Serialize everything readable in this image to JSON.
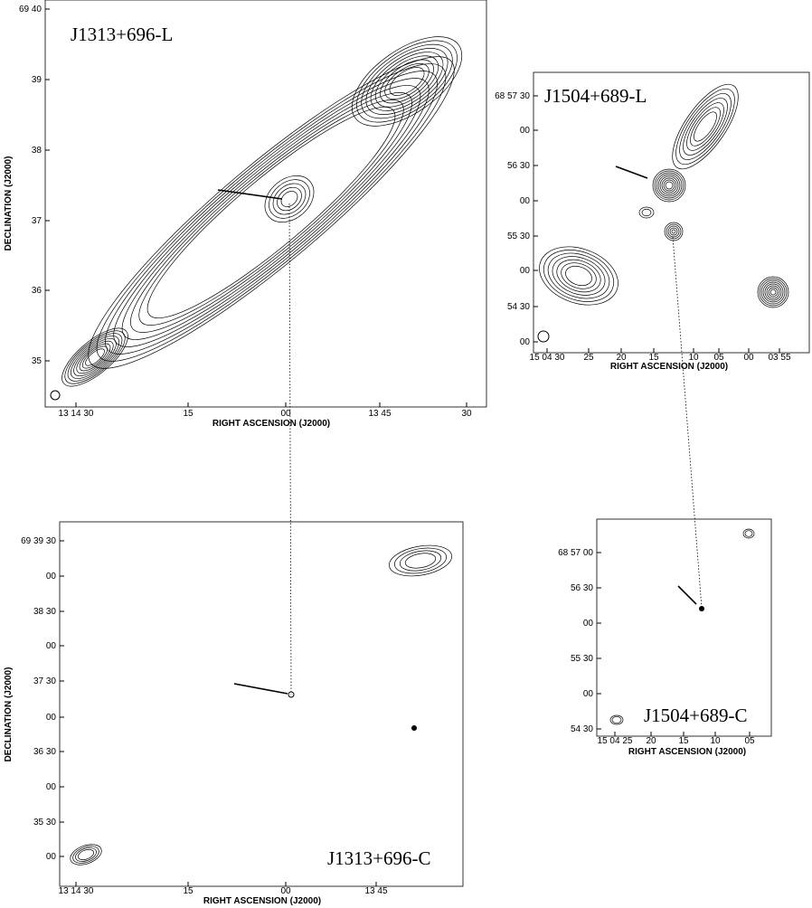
{
  "panels": [
    {
      "title": "J1313+696-L",
      "xlabel": "RIGHT ASCENSION (J2000)",
      "ylabel": "DECLINATION (J2000)",
      "xticks": [
        "13 14 30",
        "15",
        "00",
        "13 45",
        "30"
      ],
      "yticks": [
        "69 40",
        "39",
        "38",
        "37",
        "36",
        "35"
      ]
    },
    {
      "title": "J1504+689-L",
      "xlabel": "RIGHT ASCENSION (J2000)",
      "xticks": [
        "15 04 30",
        "25",
        "20",
        "15",
        "10",
        "05",
        "00",
        "03 55"
      ],
      "yticks": [
        "68 57 30",
        "00",
        "56 30",
        "00",
        "55 30",
        "00",
        "54 30",
        "00"
      ]
    },
    {
      "title": "J1313+696-C",
      "xlabel": "RIGHT ASCENSION (J2000)",
      "ylabel": "DECLINATION (J2000)",
      "xticks": [
        "13 14 30",
        "15",
        "00",
        "13 45"
      ],
      "yticks": [
        "69 39 30",
        "00",
        "38 30",
        "00",
        "37 30",
        "00",
        "36 30",
        "00",
        "35 30",
        "00"
      ]
    },
    {
      "title": "J1504+689-C",
      "xlabel": "RIGHT ASCENSION (J2000)",
      "xticks": [
        "15 04 25",
        "20",
        "15",
        "10",
        "05"
      ],
      "yticks": [
        "68 57 00",
        "56 30",
        "00",
        "55 30",
        "00",
        "54 30"
      ]
    }
  ]
}
